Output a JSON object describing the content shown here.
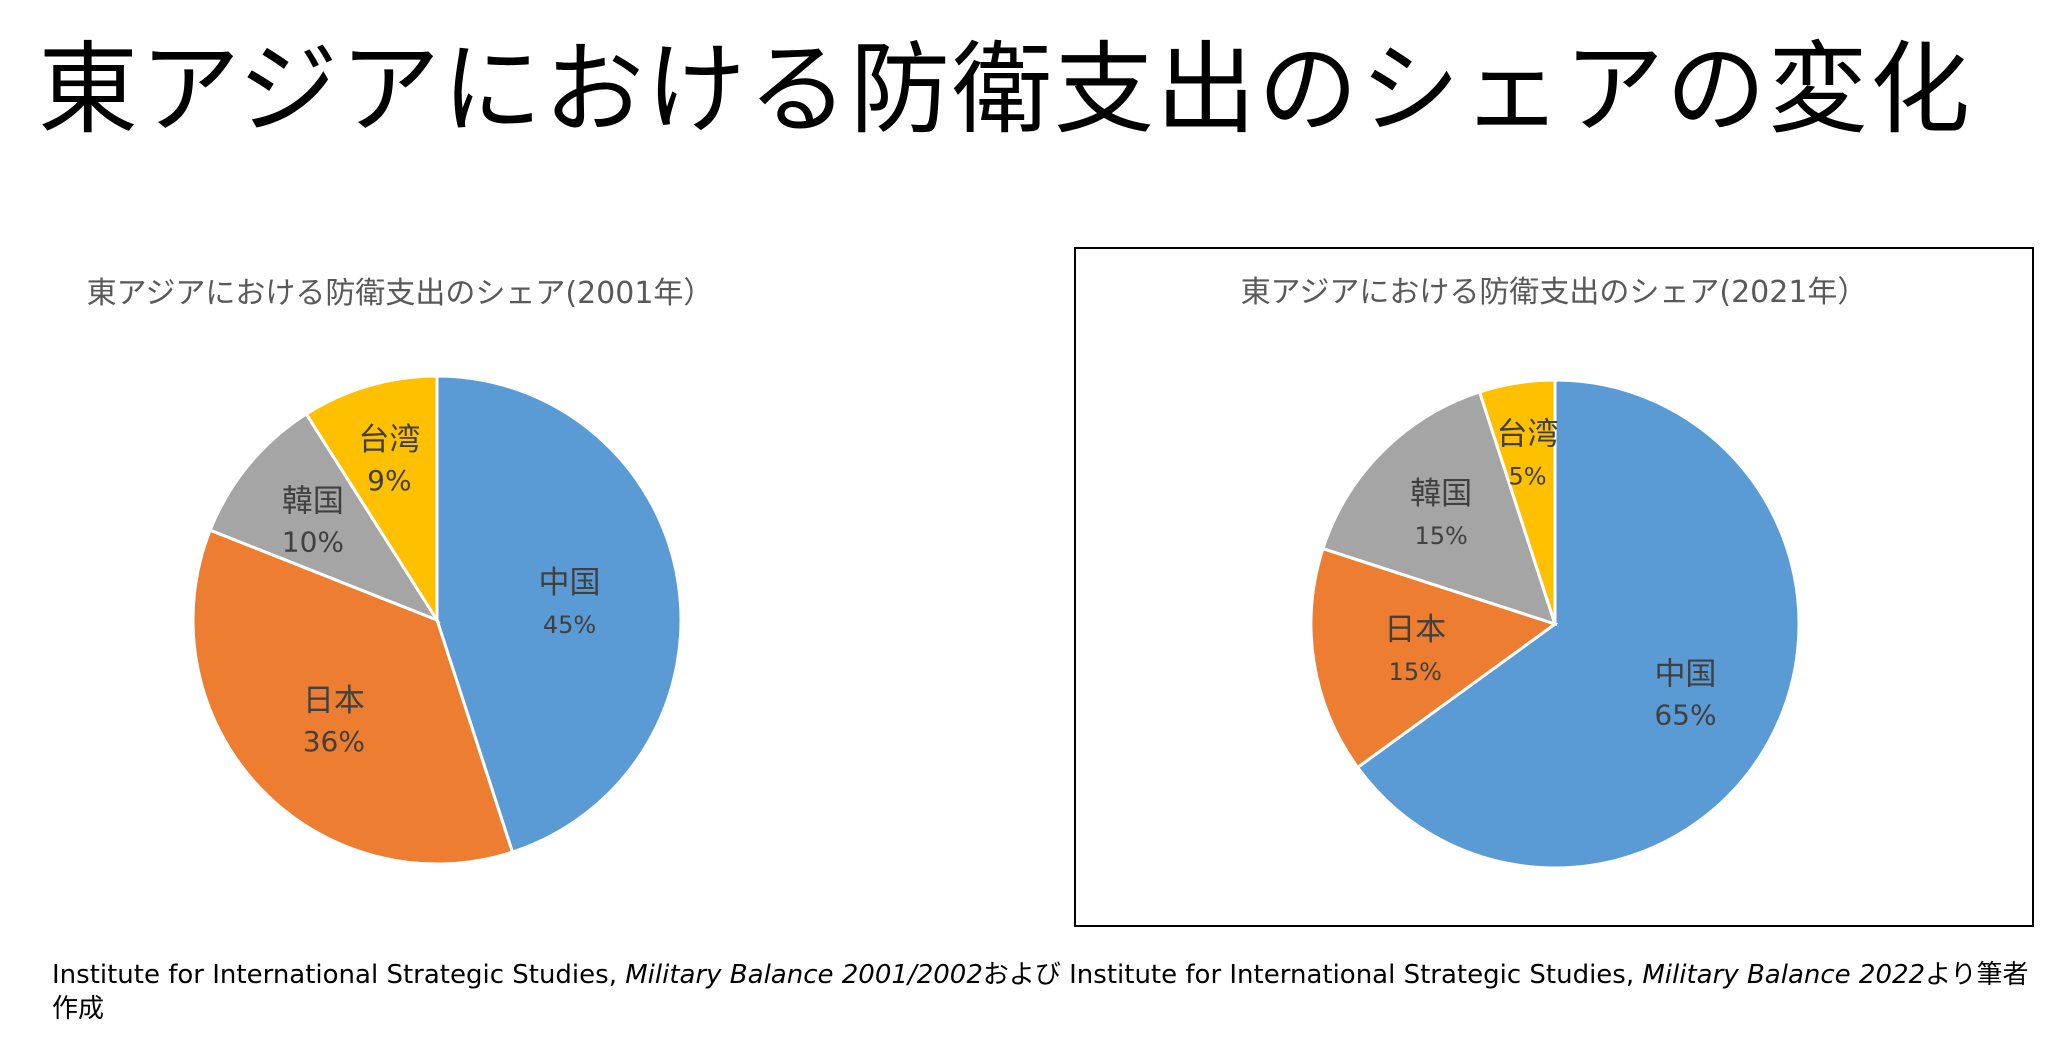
{
  "page": {
    "title": "東アジアにおける防衛支出のシェアの変化"
  },
  "colors": {
    "中国": "#5B9BD5",
    "日本": "#ED7D31",
    "韓国": "#A5A5A5",
    "台湾": "#FFC000"
  },
  "chart_data": [
    {
      "type": "pie",
      "title": "東アジアにおける防衛支出のシェア(2001年）",
      "categories": [
        "中国",
        "日本",
        "韓国",
        "台湾"
      ],
      "values": [
        45,
        36,
        10,
        9
      ],
      "value_labels": [
        "45%",
        "36%",
        "10%",
        "9%"
      ],
      "legend": "none"
    },
    {
      "type": "pie",
      "title": "東アジアにおける防衛支出のシェア(2021年）",
      "categories": [
        "中国",
        "日本",
        "韓国",
        "台湾"
      ],
      "values": [
        65,
        15,
        15,
        5
      ],
      "value_labels": [
        "65%",
        "15%",
        "15%",
        "5%"
      ],
      "legend": "none"
    }
  ],
  "source": {
    "prefix": "Institute for International Strategic Studies, ",
    "work1": "Military Balance 2001/2002",
    "joiner": "および Institute for International Strategic Studies, ",
    "work2": "Military Balance 2022",
    "suffix": "より筆者作成"
  }
}
